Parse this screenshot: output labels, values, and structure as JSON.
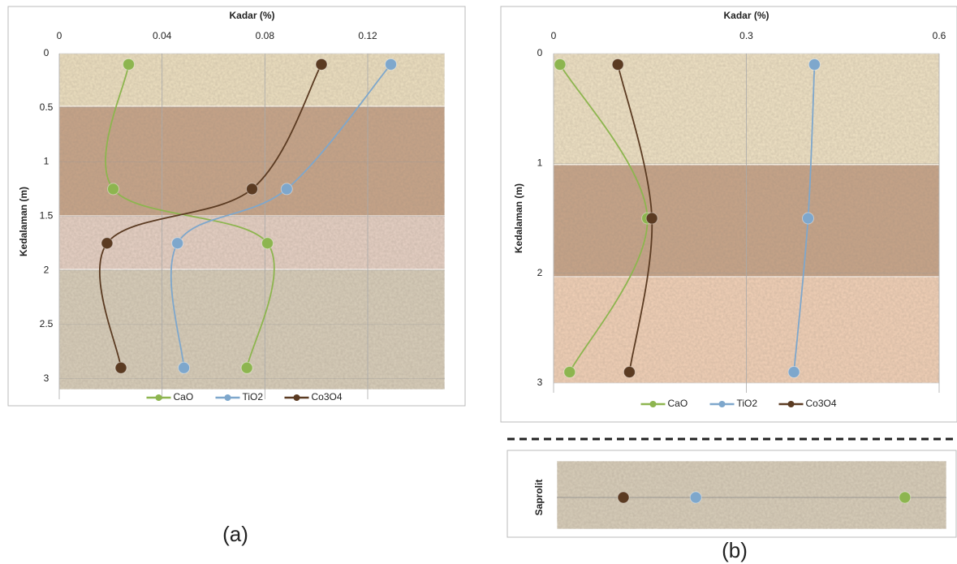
{
  "chart_data": [
    {
      "type": "line",
      "label": "(a)",
      "title": "Kadar (%)",
      "ylabel": "Kedalaman (m)",
      "xlim": [
        0,
        0.15
      ],
      "xticks": [
        0,
        0.04,
        0.08,
        0.12
      ],
      "ylim": [
        0,
        3.1
      ],
      "yticks": [
        0,
        0.5,
        1,
        1.5,
        2,
        2.5,
        3
      ],
      "y": [
        0.1,
        1.25,
        1.75,
        2.9
      ],
      "series": [
        {
          "name": "CaO",
          "color": "#8db54f",
          "values": [
            0.027,
            0.021,
            0.081,
            0.073
          ]
        },
        {
          "name": "TiO2",
          "color": "#7ea7cc",
          "values": [
            0.129,
            0.0885,
            0.046,
            0.0485
          ]
        },
        {
          "name": "Co3O4",
          "color": "#5b3b22",
          "values": [
            0.102,
            0.075,
            0.0186,
            0.024
          ]
        }
      ],
      "grid": true
    },
    {
      "type": "line",
      "label": "(b)",
      "title": "Kadar (%)",
      "ylabel": "Kedalaman (m)",
      "xlim": [
        0,
        0.6
      ],
      "xticks": [
        0,
        0.3,
        0.6
      ],
      "ylim": [
        0,
        3
      ],
      "yticks": [
        0,
        1,
        2,
        3
      ],
      "y": [
        0.1,
        1.5,
        2.9
      ],
      "series": [
        {
          "name": "CaO",
          "color": "#8db54f",
          "values": [
            0.01,
            0.146,
            0.025
          ]
        },
        {
          "name": "TiO2",
          "color": "#7ea7cc",
          "values": [
            0.406,
            0.396,
            0.374
          ]
        },
        {
          "name": "Co3O4",
          "color": "#5b3b22",
          "values": [
            0.1,
            0.153,
            0.118
          ]
        }
      ],
      "grid": true
    },
    {
      "type": "scatter",
      "ylabel": "Saprolit",
      "xlim": [
        0,
        0.6
      ],
      "series": [
        {
          "name": "CaO",
          "color": "#8db54f",
          "values": [
            0.536
          ]
        },
        {
          "name": "TiO2",
          "color": "#7ea7cc",
          "values": [
            0.214
          ]
        },
        {
          "name": "Co3O4",
          "color": "#5b3b22",
          "values": [
            0.1025
          ]
        }
      ]
    }
  ]
}
